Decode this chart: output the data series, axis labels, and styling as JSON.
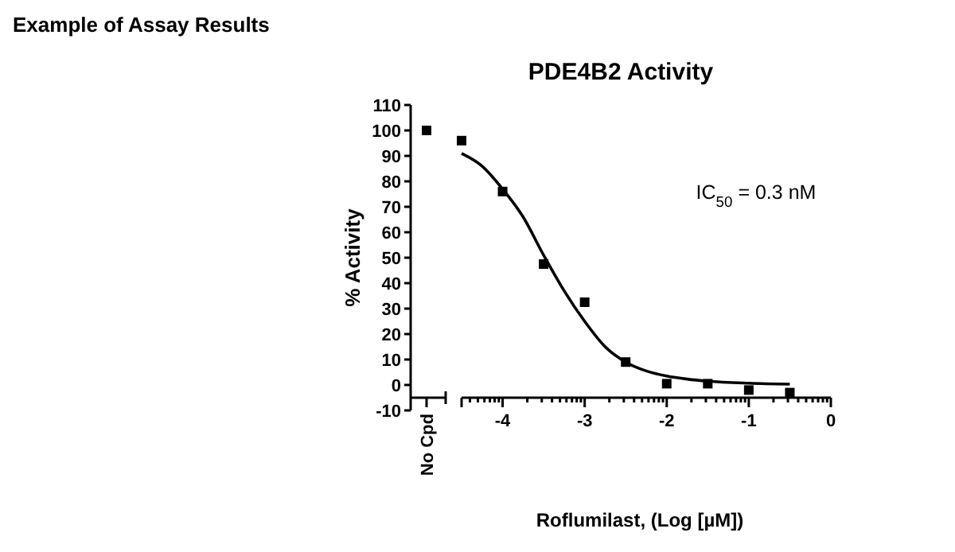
{
  "chart_data": [
    {
      "type": "scatter",
      "annotations": [
        "Example of Assay Results"
      ],
      "ylabel": "% Activity",
      "categories": [
        "No Cpd"
      ],
      "series": [
        {
          "color": "#000000",
          "values": [
            100
          ]
        }
      ],
      "ylim": [
        -10,
        110
      ],
      "yticks": [
        -10,
        0,
        10,
        20,
        30,
        40,
        50,
        60,
        70,
        80,
        90,
        100,
        110
      ],
      "marker": "square",
      "grid": false
    },
    {
      "type": "scatter",
      "title": "PDE4B2 Activity",
      "xlabel": "Roflumilast, (Log [µM])",
      "annotations": [
        "IC$_{50}$ = 0.3 nM"
      ],
      "series": [
        {
          "color": "#000000",
          "x": [
            -4.5,
            -4,
            -3.5,
            -3,
            -2.5,
            -2,
            -1.5,
            -1,
            -0.5
          ],
          "values": [
            96,
            76,
            47.5,
            32.5,
            9,
            0.5,
            0.5,
            -2,
            -3
          ]
        },
        {
          "type": "line",
          "color": "#000000",
          "marker": "none",
          "line_style": "solid",
          "x": [
            -4.5,
            -4.25,
            -4,
            -3.75,
            -3.5,
            -3.25,
            -3,
            -2.75,
            -2.5,
            -2.25,
            -2,
            -1.75,
            -1.5,
            -1,
            -0.5
          ],
          "values": [
            91,
            86,
            77,
            66,
            51,
            37,
            25,
            15,
            9,
            5.5,
            3.5,
            2.3,
            1.5,
            0.7,
            0.3
          ]
        }
      ],
      "xlim": [
        -4.5,
        0
      ],
      "xticks": [
        {
          "value": -4.5,
          "label": null
        },
        {
          "value": -4.398,
          "label": null
        },
        {
          "value": -4.301,
          "label": null
        },
        {
          "value": -4.222,
          "label": null
        },
        {
          "value": -4.155,
          "label": null
        },
        {
          "value": -4.097,
          "label": null
        },
        {
          "value": -4.046,
          "label": null
        },
        -4,
        {
          "value": -3.699,
          "label": null
        },
        {
          "value": -3.523,
          "label": null
        },
        {
          "value": -3.398,
          "label": null
        },
        {
          "value": -3.301,
          "label": null
        },
        {
          "value": -3.222,
          "label": null
        },
        {
          "value": -3.155,
          "label": null
        },
        {
          "value": -3.097,
          "label": null
        },
        {
          "value": -3.046,
          "label": null
        },
        -3,
        {
          "value": -2.699,
          "label": null
        },
        {
          "value": -2.523,
          "label": null
        },
        {
          "value": -2.398,
          "label": null
        },
        {
          "value": -2.301,
          "label": null
        },
        {
          "value": -2.222,
          "label": null
        },
        {
          "value": -2.155,
          "label": null
        },
        {
          "value": -2.097,
          "label": null
        },
        {
          "value": -2.046,
          "label": null
        },
        -2,
        {
          "value": -1.699,
          "label": null
        },
        {
          "value": -1.523,
          "label": null
        },
        {
          "value": -1.398,
          "label": null
        },
        {
          "value": -1.301,
          "label": null
        },
        {
          "value": -1.222,
          "label": null
        },
        {
          "value": -1.155,
          "label": null
        },
        {
          "value": -1.097,
          "label": null
        },
        {
          "value": -1.046,
          "label": null
        },
        -1,
        {
          "value": -0.699,
          "label": null
        },
        {
          "value": -0.523,
          "label": null
        },
        {
          "value": -0.398,
          "label": null
        },
        {
          "value": -0.301,
          "label": null
        },
        {
          "value": -0.222,
          "label": null
        },
        {
          "value": -0.155,
          "label": null
        },
        {
          "value": -0.097,
          "label": null
        },
        {
          "value": -0.046,
          "label": null
        },
        0
      ],
      "ylim": [
        -10,
        110
      ],
      "tick_labels": "x",
      "marker": "square",
      "grid": false
    }
  ]
}
